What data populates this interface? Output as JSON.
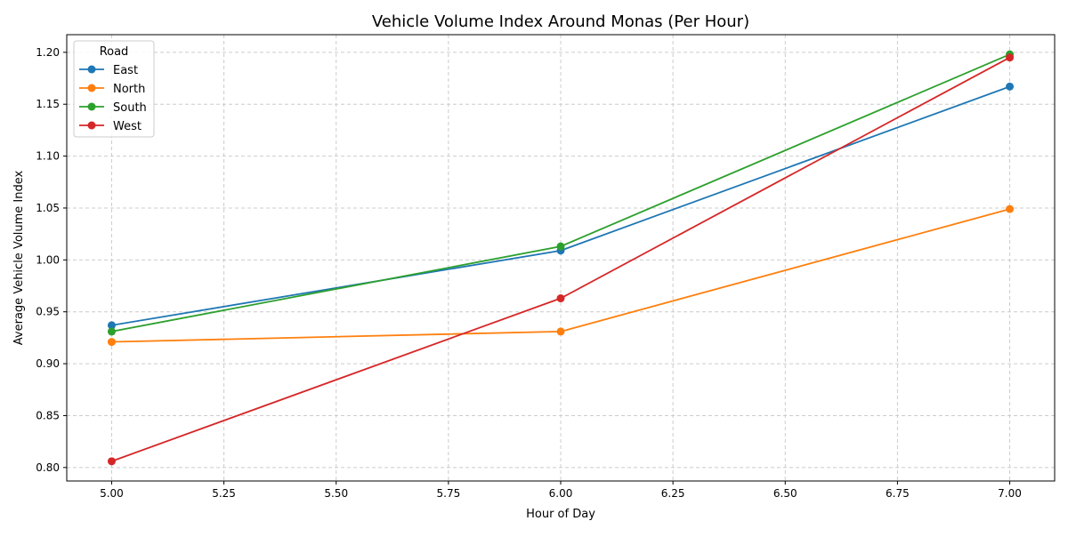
{
  "chart_data": {
    "type": "line",
    "title": "Vehicle Volume Index Around Monas (Per Hour)",
    "xlabel": "Hour of Day",
    "ylabel": "Average Vehicle Volume Index",
    "xlim": [
      4.9,
      7.1
    ],
    "ylim": [
      0.787,
      1.217
    ],
    "x_ticks": [
      5.0,
      5.25,
      5.5,
      5.75,
      6.0,
      6.25,
      6.5,
      6.75,
      7.0
    ],
    "x_tick_labels": [
      "5.00",
      "5.25",
      "5.50",
      "5.75",
      "6.00",
      "6.25",
      "6.50",
      "6.75",
      "7.00"
    ],
    "y_ticks": [
      0.8,
      0.85,
      0.9,
      0.95,
      1.0,
      1.05,
      1.1,
      1.15,
      1.2
    ],
    "y_tick_labels": [
      "0.80",
      "0.85",
      "0.90",
      "0.95",
      "1.00",
      "1.05",
      "1.10",
      "1.15",
      "1.20"
    ],
    "grid": true,
    "legend": {
      "title": "Road",
      "position": "top-left"
    },
    "x": [
      5,
      6,
      7
    ],
    "series": [
      {
        "name": "East",
        "color": "#1f77b4",
        "values": [
          0.937,
          1.009,
          1.167
        ]
      },
      {
        "name": "North",
        "color": "#ff7f0e",
        "values": [
          0.921,
          0.931,
          1.049
        ]
      },
      {
        "name": "South",
        "color": "#2ca02c",
        "values": [
          0.931,
          1.013,
          1.198
        ]
      },
      {
        "name": "West",
        "color": "#d62728",
        "values": [
          0.806,
          0.963,
          1.195
        ]
      }
    ]
  }
}
